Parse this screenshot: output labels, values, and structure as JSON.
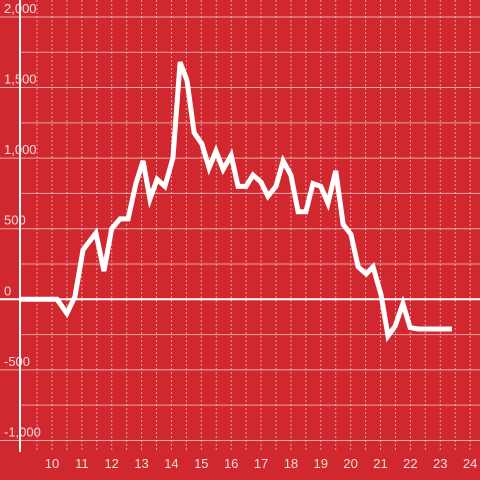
{
  "chart_data": {
    "type": "line",
    "color": "#ffffff",
    "background": "#d0282e",
    "x": [
      8.93,
      10.17,
      10.5,
      10.77,
      11.04,
      11.47,
      11.74,
      12.0,
      12.28,
      12.55,
      12.81,
      13.05,
      13.28,
      13.52,
      13.78,
      14.05,
      14.29,
      14.52,
      14.76,
      15.02,
      15.26,
      15.49,
      15.73,
      16.0,
      16.23,
      16.5,
      16.73,
      17.0,
      17.23,
      17.5,
      17.74,
      18.0,
      18.24,
      18.5,
      18.74,
      19.0,
      19.24,
      19.5,
      19.75,
      20.01,
      20.25,
      20.52,
      20.75,
      21.02,
      21.25,
      21.49,
      21.75,
      21.99,
      22.26,
      23.39
    ],
    "values": [
      0,
      0,
      -100,
      20,
      350,
      470,
      200,
      500,
      570,
      570,
      820,
      980,
      710,
      850,
      800,
      1000,
      1680,
      1550,
      1180,
      1100,
      930,
      1050,
      920,
      1020,
      800,
      800,
      880,
      830,
      730,
      800,
      980,
      880,
      620,
      620,
      820,
      800,
      680,
      910,
      530,
      460,
      230,
      180,
      230,
      30,
      -260,
      -190,
      -30,
      -200,
      -210,
      -210
    ],
    "xlim": [
      8.93,
      24.33
    ],
    "ylim": [
      -1280,
      2120
    ],
    "xticks": [
      10,
      11,
      12,
      13,
      14,
      15,
      16,
      17,
      18,
      19,
      20,
      21,
      22,
      23,
      24
    ],
    "yticks": [
      {
        "value": 2000,
        "label": "2,000"
      },
      {
        "value": 1500,
        "label": "1,500"
      },
      {
        "value": 1000,
        "label": "1,000"
      },
      500,
      0,
      -500,
      {
        "value": -1000,
        "label": "-1,000"
      }
    ],
    "y_minor_ticks": [
      1750,
      1250,
      750,
      250,
      -250,
      -750
    ],
    "x_minor_ticks": [
      9.5,
      10.5,
      11.5,
      12.5,
      13.5,
      14.5,
      15.5,
      16.5,
      17.5,
      18.5,
      19.5,
      20.5,
      21.5,
      22.5,
      23.5
    ],
    "grid": true
  }
}
